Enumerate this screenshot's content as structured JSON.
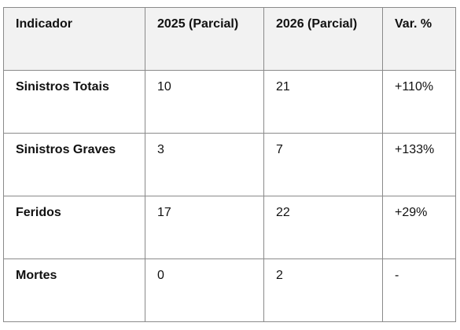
{
  "table": {
    "headers": [
      "Indicador",
      "2025 (Parcial)",
      "2026 (Parcial)",
      "Var. %"
    ],
    "rows": [
      [
        "Sinistros Totais",
        "10",
        "21",
        "+110%"
      ],
      [
        "Sinistros Graves",
        "3",
        "7",
        "+133%"
      ],
      [
        "Feridos",
        "17",
        "22",
        "+29%"
      ],
      [
        "Mortes",
        "0",
        "2",
        "-"
      ]
    ]
  },
  "colors": {
    "header_background": "#f2f2f2",
    "border": "#8a8a8a",
    "text": "#111111"
  }
}
